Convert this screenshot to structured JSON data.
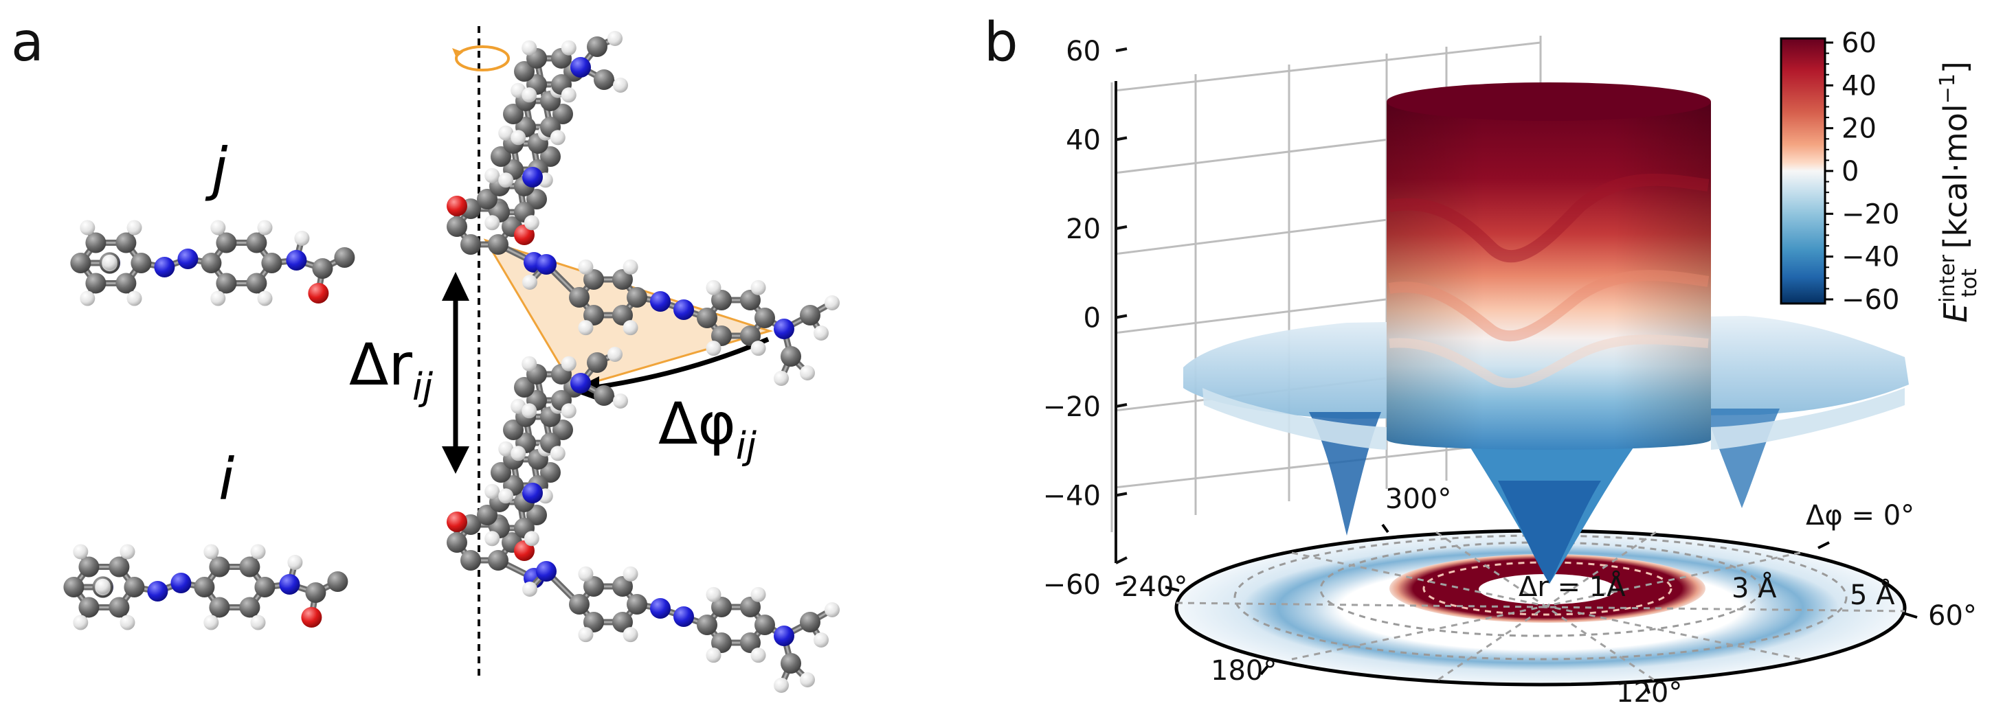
{
  "panel_a": {
    "letter": "a",
    "label_j": "j",
    "label_i": "i",
    "delta_r": "Δr",
    "delta_r_sub": "ij",
    "delta_phi": "Δφ",
    "delta_phi_sub": "ij",
    "colors": {
      "carbon": "#6b6b6b",
      "nitrogen": "#1f1fd6",
      "oxygen": "#e01b1b",
      "hydrogen": "#dcdcdc",
      "wedge": "#fbe3c6",
      "wedge_edge": "#f0a030",
      "rotation": "#f0a030"
    }
  },
  "panel_b": {
    "letter": "b",
    "chart_data": {
      "type": "surface3d",
      "zlim": [
        -60,
        60
      ],
      "z_ticks": [
        "60",
        "40",
        "20",
        "0",
        "−20",
        "−40",
        "−60"
      ],
      "angle_labels": [
        "Δφ = 0°",
        "60°",
        "120°",
        "180°",
        "240°",
        "300°"
      ],
      "radius_labels": [
        "Δr = 1Å",
        "3 Å",
        "5 Å"
      ],
      "colorbar": {
        "ticks": [
          "60",
          "40",
          "20",
          "0",
          "−20",
          "−40",
          "−60"
        ],
        "range": [
          -60,
          60
        ],
        "label_main": "E",
        "label_sup": "inter",
        "label_sub": "tot",
        "label_unit": " [kcal·mol",
        "label_unit_sup": "−1",
        "label_unit_end": "]",
        "cmap": "RdBu_r"
      }
    }
  }
}
